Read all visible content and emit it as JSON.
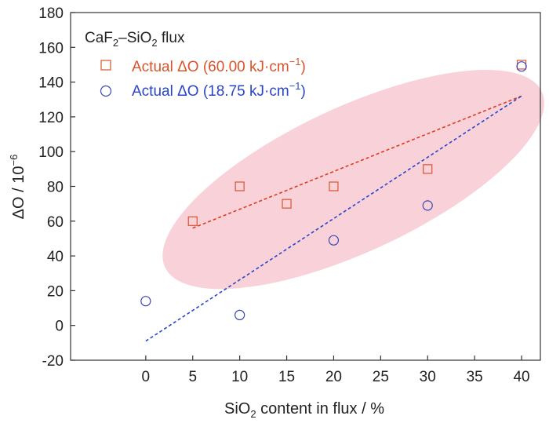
{
  "chart_data": {
    "type": "scatter",
    "legend_title": {
      "main": "CaF",
      "sub1": "2",
      "mid": "–SiO",
      "sub2": "2",
      "tail": " flux"
    },
    "xlabel": {
      "main": "SiO",
      "sub": "2",
      "tail": " content in flux / %"
    },
    "ylabel": {
      "main": "ΔO / 10",
      "sup": "−6"
    },
    "xlim": [
      -8,
      42
    ],
    "ylim": [
      -20,
      180
    ],
    "xticks": [
      0,
      5,
      10,
      15,
      20,
      25,
      30,
      35,
      40
    ],
    "yticks": [
      -20,
      0,
      20,
      40,
      60,
      80,
      100,
      120,
      140,
      160,
      180
    ],
    "legend_position": "top-left",
    "series": [
      {
        "name": {
          "main": "Actual ΔO (60.00 kJ·cm",
          "sup": "−1",
          "tail": ")"
        },
        "marker": "square",
        "color": "#d9542c",
        "line_color": "#e03a1e",
        "x": [
          5,
          10,
          15,
          20,
          30,
          40
        ],
        "y": [
          60,
          80,
          70,
          80,
          90,
          150
        ],
        "fit": [
          [
            5,
            56
          ],
          [
            40,
            132
          ]
        ]
      },
      {
        "name": {
          "main": "Actual ΔO (18.75 kJ·cm",
          "sup": "−1",
          "tail": ")"
        },
        "marker": "circle",
        "color": "#3b46b0",
        "line_color": "#2a46c8",
        "x": [
          0,
          10,
          20,
          30,
          40
        ],
        "y": [
          14,
          6,
          49,
          69,
          149
        ],
        "fit": [
          [
            0,
            -9
          ],
          [
            40,
            132
          ]
        ]
      }
    ],
    "highlight": {
      "shape": "ellipse",
      "color": "#f7c9d2"
    }
  }
}
